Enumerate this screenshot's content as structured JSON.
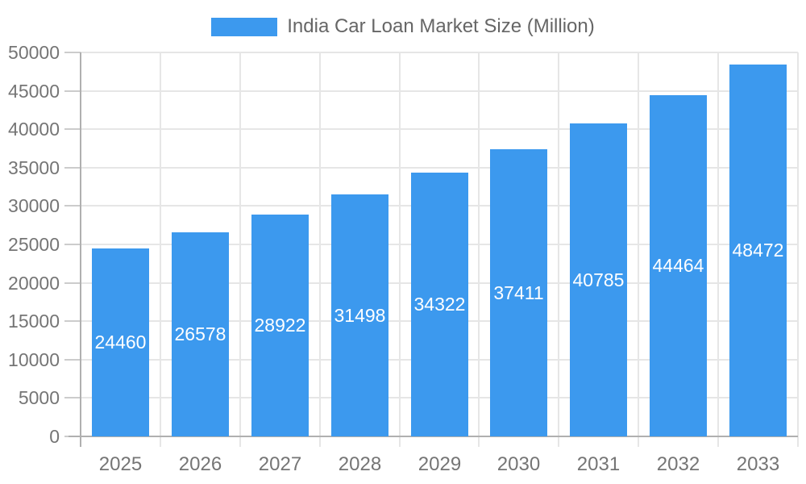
{
  "chart_data": {
    "type": "bar",
    "title": "India Car Loan Market Size (Million)",
    "legend_position": "top",
    "categories": [
      "2025",
      "2026",
      "2027",
      "2028",
      "2029",
      "2030",
      "2031",
      "2032",
      "2033"
    ],
    "series": [
      {
        "name": "India Car Loan Market Size (Million)",
        "values": [
          24460,
          26578,
          28922,
          31498,
          34322,
          37411,
          40785,
          44464,
          48472
        ]
      }
    ],
    "xlabel": "",
    "ylabel": "",
    "ylim": [
      0,
      50000
    ],
    "ytick_step": 5000,
    "yticks": [
      0,
      5000,
      10000,
      15000,
      20000,
      25000,
      30000,
      35000,
      40000,
      45000,
      50000
    ],
    "grid": true,
    "value_labels": "inside-center"
  },
  "style": {
    "bar_color": "#3C99EE",
    "grid_color": "#e6e6e6",
    "axis_color": "#b0b0b0",
    "tick_mark_color": "#cccccc",
    "tick_label_color": "#757575",
    "legend_text_color": "#666666",
    "value_label_color": "#ffffff",
    "background_color": "#ffffff"
  }
}
